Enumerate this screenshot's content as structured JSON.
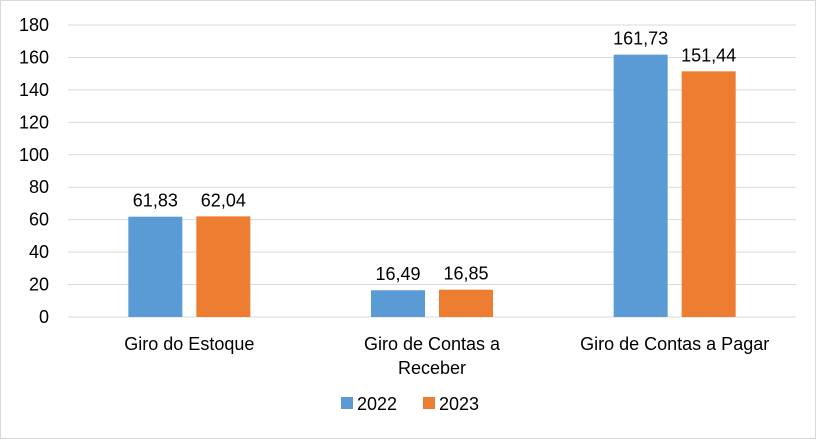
{
  "chart_data": {
    "type": "bar",
    "categories": [
      [
        "Giro do Estoque"
      ],
      [
        "Giro de Contas a",
        "Receber"
      ],
      [
        "Giro de Contas a Pagar"
      ]
    ],
    "series": [
      {
        "name": "2022",
        "color": "#5b9bd5",
        "values": [
          61.83,
          16.49,
          161.73
        ],
        "labels": [
          "61,83",
          "16,49",
          "161,73"
        ]
      },
      {
        "name": "2023",
        "color": "#ed7d31",
        "values": [
          62.04,
          16.85,
          151.44
        ],
        "labels": [
          "62,04",
          "16,85",
          "151,44"
        ]
      }
    ],
    "y_ticks": [
      0,
      20,
      40,
      60,
      80,
      100,
      120,
      140,
      160,
      180
    ],
    "ylim": [
      0,
      180
    ],
    "grid": true,
    "gridline_color": "#d9d9d9",
    "legend_position": "bottom"
  }
}
